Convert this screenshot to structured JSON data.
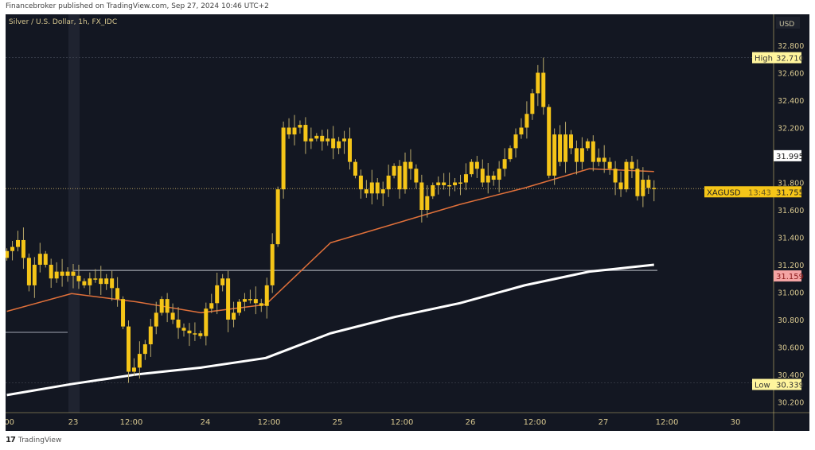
{
  "header": {
    "published": "Financebroker published on TradingView.com, Sep 27, 2024 10:46 UTC+2"
  },
  "footer": {
    "brand": "TradingView"
  },
  "chart_data": {
    "type": "candlestick",
    "title": "Silver / U.S. Dollar, 1h, FX_IDC",
    "currency": "USD",
    "y_ticks": [
      "32.800",
      "32.600",
      "32.400",
      "32.200",
      "31.800",
      "31.600",
      "31.400",
      "31.200",
      "31.000",
      "30.800",
      "30.600",
      "30.400",
      "30.200"
    ],
    "ylim": [
      30.2,
      32.8
    ],
    "x_ticks": [
      ":00",
      "23",
      "12:00",
      "24",
      "12:00",
      "25",
      "12:00",
      "26",
      "12:00",
      "27",
      "12:00",
      "30"
    ],
    "grid": false,
    "candle_color": "#f5c518",
    "closes": [
      31.3,
      31.33,
      31.38,
      31.25,
      31.05,
      31.2,
      31.28,
      31.2,
      31.1,
      31.15,
      31.12,
      31.15,
      31.12,
      31.08,
      31.05,
      31.1,
      31.1,
      31.06,
      31.1,
      31.03,
      30.95,
      30.75,
      30.42,
      30.45,
      30.55,
      30.62,
      30.75,
      30.85,
      30.95,
      30.85,
      30.8,
      30.74,
      30.72,
      30.7,
      30.7,
      30.68,
      30.88,
      30.92,
      31.05,
      31.1,
      30.8,
      30.85,
      30.93,
      30.95,
      30.95,
      30.92,
      30.9,
      31.05,
      31.35,
      31.75,
      32.2,
      32.15,
      32.2,
      32.22,
      32.1,
      32.12,
      32.14,
      32.1,
      32.12,
      32.05,
      32.1,
      32.12,
      31.95,
      31.85,
      31.75,
      31.72,
      31.8,
      31.72,
      31.75,
      31.85,
      31.92,
      31.75,
      31.95,
      31.9,
      31.8,
      31.6,
      31.7,
      31.78,
      31.8,
      31.78,
      31.78,
      31.8,
      31.8,
      31.86,
      31.95,
      31.9,
      31.8,
      31.85,
      31.82,
      31.9,
      31.97,
      32.05,
      32.15,
      32.2,
      32.3,
      32.45,
      32.6,
      32.35,
      31.85,
      32.15,
      31.95,
      32.15,
      32.05,
      31.95,
      32.05,
      32.1,
      31.95,
      31.98,
      31.95,
      31.9,
      31.8,
      31.75,
      31.95,
      31.9,
      31.7,
      31.82,
      31.76,
      31.755
    ],
    "ma_orange": {
      "color": "#e0703a",
      "values": [
        30.86,
        30.99,
        30.93,
        30.85,
        30.91,
        31.36,
        31.5,
        31.64,
        31.76,
        31.9,
        31.88
      ]
    },
    "ma_white": {
      "color": "#ffffff",
      "values": [
        30.25,
        30.33,
        30.4,
        30.45,
        30.52,
        30.7,
        30.82,
        30.92,
        31.05,
        31.15,
        31.2
      ]
    },
    "labels": {
      "high": {
        "text": "High",
        "value": "32.710"
      },
      "low": {
        "text": "Low",
        "value": "30.339"
      },
      "level_white": {
        "value": "31.995"
      },
      "current": {
        "symbol": "XAGUSD",
        "value": "31.755",
        "countdown": "13:43"
      },
      "support": {
        "value": "31.159",
        "color": "#f4a4a4"
      }
    }
  }
}
